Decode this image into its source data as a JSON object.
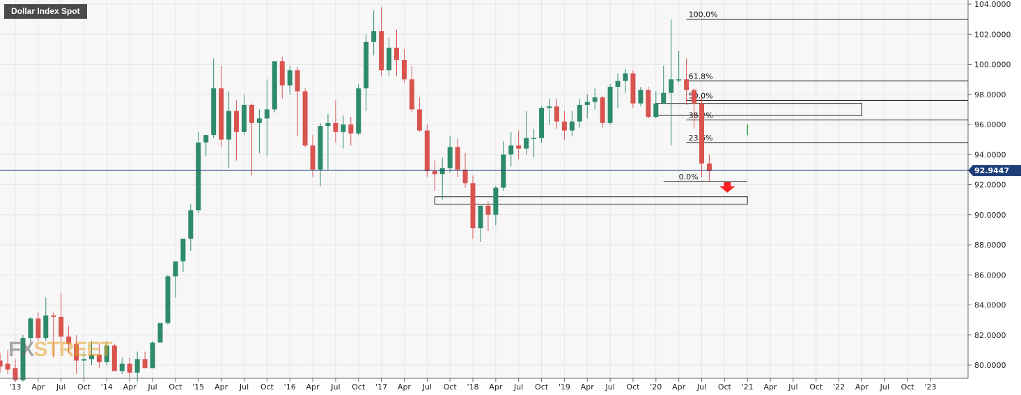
{
  "chart_data": {
    "type": "candlestick",
    "title": "Dollar Index Spot",
    "interval": "monthly",
    "current_price": "92.9447",
    "colors": {
      "up": "#2e8b6a",
      "down": "#d9534f",
      "price_line": "#1f3f7a",
      "price_badge": "#1f3f7a"
    },
    "y_ticks": [
      "104.0000",
      "102.0000",
      "100.0000",
      "98.0000",
      "96.0000",
      "94.0000",
      "92.0000",
      "90.0000",
      "88.0000",
      "86.0000",
      "84.0000",
      "82.0000",
      "80.0000"
    ],
    "x_ticks": [
      "'13",
      "Apr",
      "Jul",
      "Oct",
      "'14",
      "Apr",
      "Jul",
      "Oct",
      "'15",
      "Apr",
      "Jul",
      "Oct",
      "'16",
      "Apr",
      "Jul",
      "Oct",
      "'17",
      "Apr",
      "Jul",
      "Oct",
      "'18",
      "Apr",
      "Jul",
      "Oct",
      "'19",
      "Apr",
      "Jul",
      "Oct",
      "'20",
      "Apr",
      "Jul",
      "Oct",
      "'21",
      "Apr",
      "Jul",
      "Oct",
      "'22",
      "Apr",
      "Jul",
      "Oct",
      "'23"
    ],
    "fib_levels": [
      {
        "label": "100.0%",
        "value": 103.0
      },
      {
        "label": "61.8%",
        "value": 98.9
      },
      {
        "label": "50.0%",
        "value": 97.6
      },
      {
        "label": "38.2%",
        "value": 96.3
      },
      {
        "label": "23.6%",
        "value": 94.8
      },
      {
        "label": "0.0%",
        "value": 92.2
      }
    ],
    "zones": [
      {
        "start": "2020-01",
        "end": "2022-04",
        "low": 96.6,
        "high": 97.4
      },
      {
        "start": "2017-08",
        "end": "2021-01",
        "low": 90.7,
        "high": 91.2
      }
    ],
    "candles": [
      {
        "t": "2012-11",
        "o": 80.3,
        "h": 80.8,
        "l": 79.5,
        "c": 79.9
      },
      {
        "t": "2012-12",
        "o": 80.1,
        "h": 81.0,
        "l": 79.4,
        "c": 79.7
      },
      {
        "t": "2013-01",
        "o": 79.8,
        "h": 80.4,
        "l": 78.9,
        "c": 79.0
      },
      {
        "t": "2013-02",
        "o": 79.0,
        "h": 82.0,
        "l": 78.9,
        "c": 81.8
      },
      {
        "t": "2013-03",
        "o": 81.8,
        "h": 83.2,
        "l": 81.5,
        "c": 83.1
      },
      {
        "t": "2013-04",
        "o": 83.1,
        "h": 83.5,
        "l": 81.6,
        "c": 81.8
      },
      {
        "t": "2013-05",
        "o": 81.8,
        "h": 84.5,
        "l": 81.6,
        "c": 83.3
      },
      {
        "t": "2013-06",
        "o": 83.3,
        "h": 83.5,
        "l": 80.5,
        "c": 83.2
      },
      {
        "t": "2013-07",
        "o": 83.2,
        "h": 84.8,
        "l": 81.5,
        "c": 81.9
      },
      {
        "t": "2013-08",
        "o": 81.9,
        "h": 82.6,
        "l": 80.8,
        "c": 81.4
      },
      {
        "t": "2013-09",
        "o": 81.4,
        "h": 82.0,
        "l": 79.4,
        "c": 80.3
      },
      {
        "t": "2013-10",
        "o": 80.3,
        "h": 80.9,
        "l": 79.0,
        "c": 80.4
      },
      {
        "t": "2013-11",
        "o": 80.4,
        "h": 81.6,
        "l": 80.0,
        "c": 80.7
      },
      {
        "t": "2013-12",
        "o": 80.7,
        "h": 81.4,
        "l": 79.8,
        "c": 80.2
      },
      {
        "t": "2014-01",
        "o": 80.2,
        "h": 81.6,
        "l": 80.0,
        "c": 81.3
      },
      {
        "t": "2014-02",
        "o": 81.3,
        "h": 81.4,
        "l": 79.8,
        "c": 79.6
      },
      {
        "t": "2014-03",
        "o": 79.6,
        "h": 80.5,
        "l": 79.4,
        "c": 80.1
      },
      {
        "t": "2014-04",
        "o": 80.1,
        "h": 80.5,
        "l": 79.2,
        "c": 79.5
      },
      {
        "t": "2014-05",
        "o": 79.5,
        "h": 80.9,
        "l": 78.9,
        "c": 80.4
      },
      {
        "t": "2014-06",
        "o": 80.4,
        "h": 80.9,
        "l": 79.8,
        "c": 79.8
      },
      {
        "t": "2014-07",
        "o": 79.8,
        "h": 81.6,
        "l": 79.8,
        "c": 81.5
      },
      {
        "t": "2014-08",
        "o": 81.5,
        "h": 82.8,
        "l": 81.5,
        "c": 82.8
      },
      {
        "t": "2014-09",
        "o": 82.8,
        "h": 86.0,
        "l": 82.7,
        "c": 85.9
      },
      {
        "t": "2014-10",
        "o": 85.9,
        "h": 86.8,
        "l": 84.5,
        "c": 86.9
      },
      {
        "t": "2014-11",
        "o": 86.9,
        "h": 88.4,
        "l": 86.2,
        "c": 88.4
      },
      {
        "t": "2014-12",
        "o": 88.4,
        "h": 90.7,
        "l": 87.6,
        "c": 90.3
      },
      {
        "t": "2015-01",
        "o": 90.3,
        "h": 95.5,
        "l": 90.1,
        "c": 94.8
      },
      {
        "t": "2015-02",
        "o": 94.8,
        "h": 95.3,
        "l": 93.9,
        "c": 95.3
      },
      {
        "t": "2015-03",
        "o": 95.3,
        "h": 100.4,
        "l": 95.1,
        "c": 98.4
      },
      {
        "t": "2015-04",
        "o": 98.4,
        "h": 99.9,
        "l": 94.5,
        "c": 95.0
      },
      {
        "t": "2015-05",
        "o": 95.0,
        "h": 98.2,
        "l": 93.1,
        "c": 96.9
      },
      {
        "t": "2015-06",
        "o": 96.9,
        "h": 97.6,
        "l": 93.6,
        "c": 95.5
      },
      {
        "t": "2015-07",
        "o": 95.5,
        "h": 98.0,
        "l": 95.3,
        "c": 97.3
      },
      {
        "t": "2015-08",
        "o": 97.3,
        "h": 97.4,
        "l": 92.6,
        "c": 96.1
      },
      {
        "t": "2015-09",
        "o": 96.1,
        "h": 97.0,
        "l": 94.1,
        "c": 96.4
      },
      {
        "t": "2015-10",
        "o": 96.4,
        "h": 99.0,
        "l": 93.9,
        "c": 97.0
      },
      {
        "t": "2015-11",
        "o": 97.0,
        "h": 100.2,
        "l": 96.8,
        "c": 100.2
      },
      {
        "t": "2015-12",
        "o": 100.2,
        "h": 100.5,
        "l": 97.7,
        "c": 98.6
      },
      {
        "t": "2016-01",
        "o": 98.6,
        "h": 99.9,
        "l": 98.0,
        "c": 99.6
      },
      {
        "t": "2016-02",
        "o": 99.6,
        "h": 99.8,
        "l": 95.2,
        "c": 98.2
      },
      {
        "t": "2016-03",
        "o": 98.2,
        "h": 98.4,
        "l": 94.5,
        "c": 94.6
      },
      {
        "t": "2016-04",
        "o": 94.6,
        "h": 95.3,
        "l": 92.5,
        "c": 93.0
      },
      {
        "t": "2016-05",
        "o": 93.0,
        "h": 96.1,
        "l": 91.9,
        "c": 95.9
      },
      {
        "t": "2016-06",
        "o": 95.9,
        "h": 96.7,
        "l": 93.0,
        "c": 96.1
      },
      {
        "t": "2016-07",
        "o": 96.1,
        "h": 97.6,
        "l": 94.8,
        "c": 95.5
      },
      {
        "t": "2016-08",
        "o": 95.5,
        "h": 96.6,
        "l": 94.4,
        "c": 96.0
      },
      {
        "t": "2016-09",
        "o": 96.0,
        "h": 96.5,
        "l": 94.6,
        "c": 95.4
      },
      {
        "t": "2016-10",
        "o": 95.4,
        "h": 98.7,
        "l": 95.3,
        "c": 98.4
      },
      {
        "t": "2016-11",
        "o": 98.4,
        "h": 102.0,
        "l": 96.9,
        "c": 101.5
      },
      {
        "t": "2016-12",
        "o": 101.5,
        "h": 103.6,
        "l": 100.6,
        "c": 102.2
      },
      {
        "t": "2017-01",
        "o": 102.2,
        "h": 103.8,
        "l": 99.2,
        "c": 99.6
      },
      {
        "t": "2017-02",
        "o": 99.6,
        "h": 101.8,
        "l": 99.2,
        "c": 101.1
      },
      {
        "t": "2017-03",
        "o": 101.1,
        "h": 102.3,
        "l": 99.2,
        "c": 100.3
      },
      {
        "t": "2017-04",
        "o": 100.3,
        "h": 101.0,
        "l": 98.8,
        "c": 99.0
      },
      {
        "t": "2017-05",
        "o": 99.0,
        "h": 99.9,
        "l": 96.8,
        "c": 97.0
      },
      {
        "t": "2017-06",
        "o": 97.0,
        "h": 97.8,
        "l": 95.5,
        "c": 95.6
      },
      {
        "t": "2017-07",
        "o": 95.6,
        "h": 96.0,
        "l": 92.5,
        "c": 92.9
      },
      {
        "t": "2017-08",
        "o": 92.9,
        "h": 93.6,
        "l": 91.6,
        "c": 92.7
      },
      {
        "t": "2017-09",
        "o": 92.7,
        "h": 93.8,
        "l": 91.0,
        "c": 93.1
      },
      {
        "t": "2017-10",
        "o": 93.1,
        "h": 95.2,
        "l": 92.8,
        "c": 94.5
      },
      {
        "t": "2017-11",
        "o": 94.5,
        "h": 95.1,
        "l": 92.5,
        "c": 93.0
      },
      {
        "t": "2017-12",
        "o": 93.0,
        "h": 94.1,
        "l": 91.8,
        "c": 92.1
      },
      {
        "t": "2018-01",
        "o": 92.1,
        "h": 92.6,
        "l": 88.4,
        "c": 89.1
      },
      {
        "t": "2018-02",
        "o": 89.1,
        "h": 90.6,
        "l": 88.2,
        "c": 90.6
      },
      {
        "t": "2018-03",
        "o": 90.6,
        "h": 90.9,
        "l": 88.9,
        "c": 90.0
      },
      {
        "t": "2018-04",
        "o": 90.0,
        "h": 91.9,
        "l": 89.3,
        "c": 91.8
      },
      {
        "t": "2018-05",
        "o": 91.8,
        "h": 94.9,
        "l": 91.6,
        "c": 94.0
      },
      {
        "t": "2018-06",
        "o": 94.0,
        "h": 95.5,
        "l": 93.2,
        "c": 94.6
      },
      {
        "t": "2018-07",
        "o": 94.6,
        "h": 95.6,
        "l": 93.7,
        "c": 94.4
      },
      {
        "t": "2018-08",
        "o": 94.4,
        "h": 96.9,
        "l": 94.0,
        "c": 95.1
      },
      {
        "t": "2018-09",
        "o": 95.1,
        "h": 95.7,
        "l": 93.8,
        "c": 95.1
      },
      {
        "t": "2018-10",
        "o": 95.1,
        "h": 97.2,
        "l": 94.8,
        "c": 97.1
      },
      {
        "t": "2018-11",
        "o": 97.1,
        "h": 97.7,
        "l": 96.0,
        "c": 97.2
      },
      {
        "t": "2018-12",
        "o": 97.2,
        "h": 97.7,
        "l": 95.7,
        "c": 96.2
      },
      {
        "t": "2019-01",
        "o": 96.2,
        "h": 96.9,
        "l": 95.0,
        "c": 95.6
      },
      {
        "t": "2019-02",
        "o": 95.6,
        "h": 96.9,
        "l": 95.2,
        "c": 96.2
      },
      {
        "t": "2019-03",
        "o": 96.2,
        "h": 97.7,
        "l": 95.8,
        "c": 97.3
      },
      {
        "t": "2019-04",
        "o": 97.3,
        "h": 98.0,
        "l": 96.4,
        "c": 97.5
      },
      {
        "t": "2019-05",
        "o": 97.5,
        "h": 98.4,
        "l": 97.0,
        "c": 97.8
      },
      {
        "t": "2019-06",
        "o": 97.8,
        "h": 97.9,
        "l": 95.8,
        "c": 96.1
      },
      {
        "t": "2019-07",
        "o": 96.1,
        "h": 98.7,
        "l": 96.0,
        "c": 98.5
      },
      {
        "t": "2019-08",
        "o": 98.5,
        "h": 99.4,
        "l": 97.1,
        "c": 98.9
      },
      {
        "t": "2019-09",
        "o": 98.9,
        "h": 99.7,
        "l": 98.1,
        "c": 99.4
      },
      {
        "t": "2019-10",
        "o": 99.4,
        "h": 99.6,
        "l": 97.1,
        "c": 97.4
      },
      {
        "t": "2019-11",
        "o": 97.4,
        "h": 98.5,
        "l": 97.2,
        "c": 98.3
      },
      {
        "t": "2019-12",
        "o": 98.3,
        "h": 98.5,
        "l": 96.4,
        "c": 96.5
      },
      {
        "t": "2020-01",
        "o": 96.5,
        "h": 98.2,
        "l": 96.4,
        "c": 97.4
      },
      {
        "t": "2020-02",
        "o": 97.4,
        "h": 99.9,
        "l": 97.4,
        "c": 98.1
      },
      {
        "t": "2020-03",
        "o": 98.1,
        "h": 102.99,
        "l": 94.6,
        "c": 99.0
      },
      {
        "t": "2020-04",
        "o": 99.0,
        "h": 100.9,
        "l": 98.8,
        "c": 99.0
      },
      {
        "t": "2020-05",
        "o": 99.0,
        "h": 100.4,
        "l": 97.3,
        "c": 98.3
      },
      {
        "t": "2020-06",
        "o": 98.3,
        "h": 98.4,
        "l": 95.7,
        "c": 97.4
      },
      {
        "t": "2020-07",
        "o": 97.4,
        "h": 97.8,
        "l": 92.5,
        "c": 93.4
      },
      {
        "t": "2020-08",
        "o": 93.4,
        "h": 94.0,
        "l": 92.2,
        "c": 92.9
      }
    ],
    "markers": [
      {
        "type": "arrow-down",
        "t": "2020-10",
        "value": 91.7,
        "color": "#ff2020"
      }
    ]
  }
}
